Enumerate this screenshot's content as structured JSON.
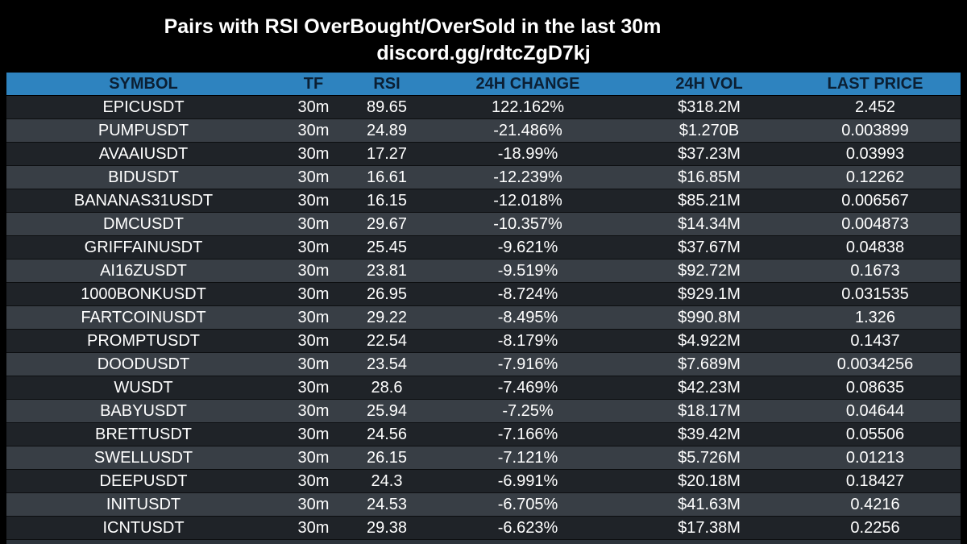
{
  "title": "Pairs with RSI OverBought/OverSold in the last 30m",
  "subtitle": "discord.gg/rdtcZgD7kj",
  "colors": {
    "header_bg": "#2e83bf",
    "header_text": "#0b1f33",
    "row_dark": "#1f2328",
    "row_light": "#383e45",
    "background": "#000000"
  },
  "table": {
    "columns": [
      "SYMBOL",
      "TF",
      "RSI",
      "24H CHANGE",
      "24H VOL",
      "LAST PRICE"
    ],
    "rows": [
      [
        "EPICUSDT",
        "30m",
        "89.65",
        "122.162%",
        "$318.2M",
        "2.452"
      ],
      [
        "PUMPUSDT",
        "30m",
        "24.89",
        "-21.486%",
        "$1.270B",
        "0.003899"
      ],
      [
        "AVAAIUSDT",
        "30m",
        "17.27",
        "-18.99%",
        "$37.23M",
        "0.03993"
      ],
      [
        "BIDUSDT",
        "30m",
        "16.61",
        "-12.239%",
        "$16.85M",
        "0.12262"
      ],
      [
        "BANANAS31USDT",
        "30m",
        "16.15",
        "-12.018%",
        "$85.21M",
        "0.006567"
      ],
      [
        "DMCUSDT",
        "30m",
        "29.67",
        "-10.357%",
        "$14.34M",
        "0.004873"
      ],
      [
        "GRIFFAINUSDT",
        "30m",
        "25.45",
        "-9.621%",
        "$37.67M",
        "0.04838"
      ],
      [
        "AI16ZUSDT",
        "30m",
        "23.81",
        "-9.519%",
        "$92.72M",
        "0.1673"
      ],
      [
        "1000BONKUSDT",
        "30m",
        "26.95",
        "-8.724%",
        "$929.1M",
        "0.031535"
      ],
      [
        "FARTCOINUSDT",
        "30m",
        "29.22",
        "-8.495%",
        "$990.8M",
        "1.326"
      ],
      [
        "PROMPTUSDT",
        "30m",
        "22.54",
        "-8.179%",
        "$4.922M",
        "0.1437"
      ],
      [
        "DOODUSDT",
        "30m",
        "23.54",
        "-7.916%",
        "$7.689M",
        "0.0034256"
      ],
      [
        "WUSDT",
        "30m",
        "28.6",
        "-7.469%",
        "$42.23M",
        "0.08635"
      ],
      [
        "BABYUSDT",
        "30m",
        "25.94",
        "-7.25%",
        "$18.17M",
        "0.04644"
      ],
      [
        "BRETTUSDT",
        "30m",
        "24.56",
        "-7.166%",
        "$39.42M",
        "0.05506"
      ],
      [
        "SWELLUSDT",
        "30m",
        "26.15",
        "-7.121%",
        "$5.726M",
        "0.01213"
      ],
      [
        "DEEPUSDT",
        "30m",
        "24.3",
        "-6.991%",
        "$20.18M",
        "0.18427"
      ],
      [
        "INITUSDT",
        "30m",
        "24.53",
        "-6.705%",
        "$41.63M",
        "0.4216"
      ],
      [
        "ICNTUSDT",
        "30m",
        "29.38",
        "-6.623%",
        "$17.38M",
        "0.2256"
      ]
    ]
  }
}
